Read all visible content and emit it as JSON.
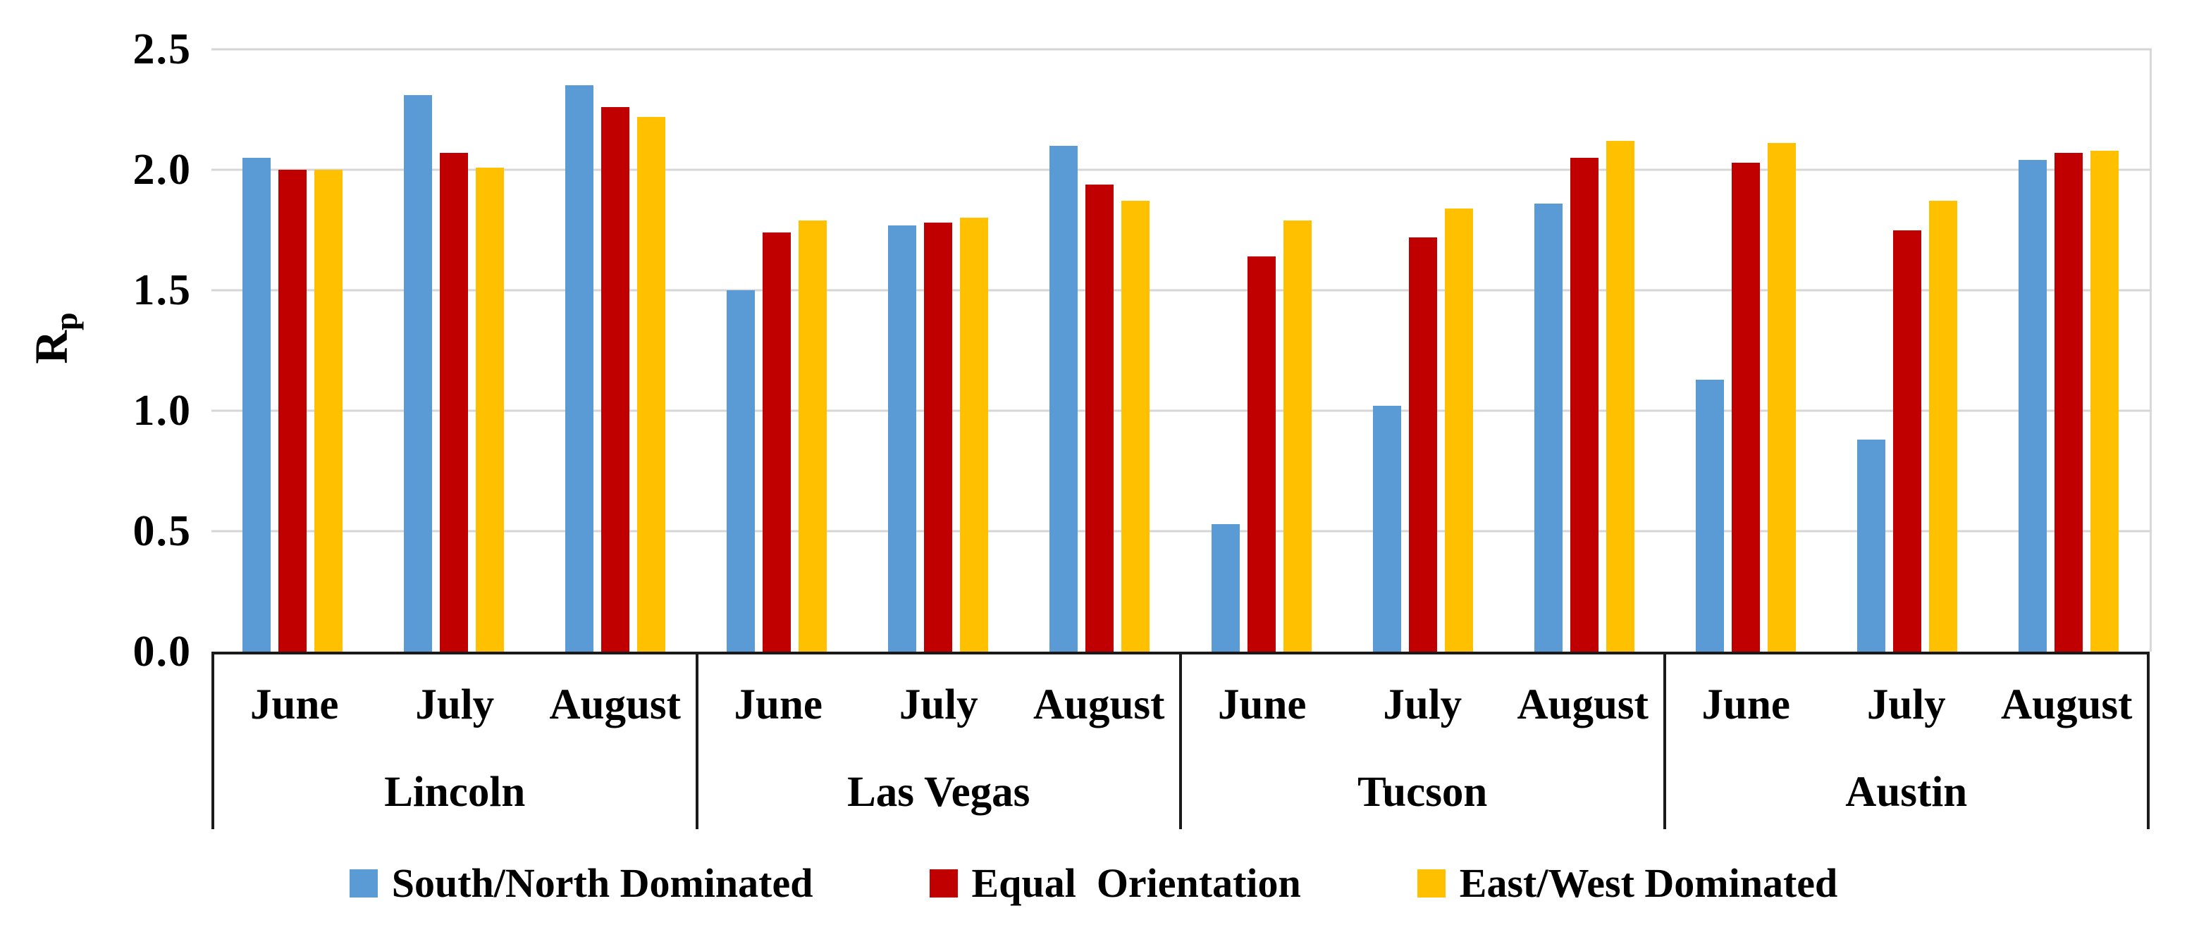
{
  "chart_data": {
    "type": "bar",
    "title": "",
    "ylabel_main": "R",
    "ylabel_sub": "p",
    "ylim": [
      0,
      2.5
    ],
    "ytick_step": 0.5,
    "yticks": [
      "0.0",
      "0.5",
      "1.0",
      "1.5",
      "2.0",
      "2.5"
    ],
    "grid": true,
    "legend_position": "bottom",
    "groups": [
      "Lincoln",
      "Las Vegas",
      "Tucson",
      "Austin"
    ],
    "months": [
      "June",
      "July",
      "August"
    ],
    "series": [
      {
        "name": "South/North Dominated",
        "color": "#5B9BD5",
        "values": [
          [
            2.05,
            2.31,
            2.35
          ],
          [
            1.5,
            1.77,
            2.1
          ],
          [
            0.53,
            1.02,
            1.86
          ],
          [
            1.13,
            0.88,
            2.04
          ]
        ]
      },
      {
        "name": "Equal  Orientation",
        "color": "#C00000",
        "values": [
          [
            2.0,
            2.07,
            2.26
          ],
          [
            1.74,
            1.78,
            1.94
          ],
          [
            1.64,
            1.72,
            2.05
          ],
          [
            2.03,
            1.75,
            2.07
          ]
        ]
      },
      {
        "name": "East/West Dominated",
        "color": "#FFC000",
        "values": [
          [
            2.0,
            2.01,
            2.22
          ],
          [
            1.79,
            1.8,
            1.87
          ],
          [
            1.79,
            1.84,
            2.12
          ],
          [
            2.11,
            1.87,
            2.08
          ]
        ]
      }
    ],
    "axis_colors": {
      "gridline": "#d6d6d6",
      "axis_line": "#1a1a1a",
      "text": "#000000"
    }
  }
}
